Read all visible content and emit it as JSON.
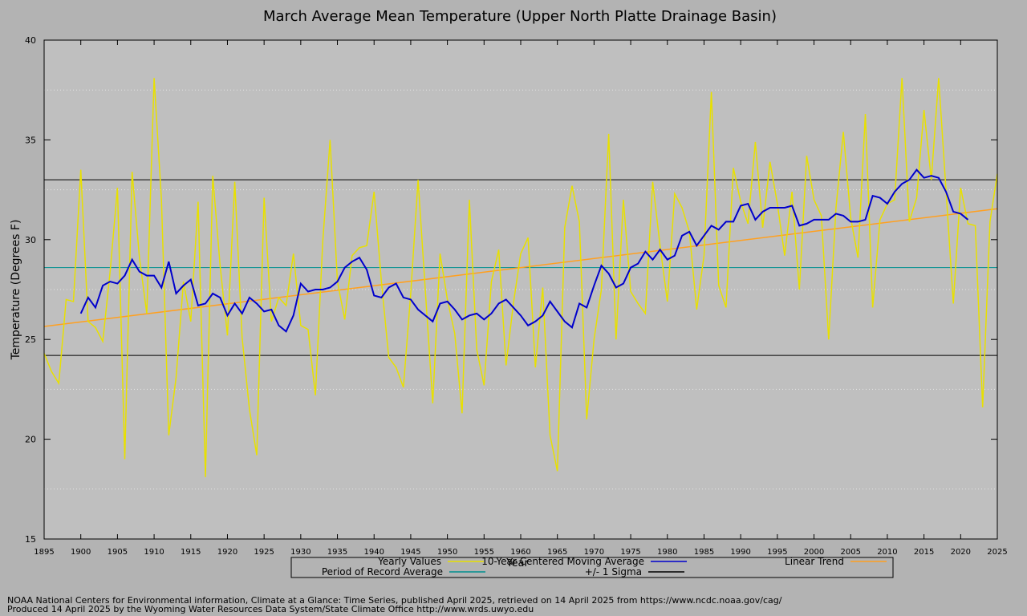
{
  "chart_data": {
    "type": "line",
    "title": "March Average Mean Temperature (Upper North Platte Drainage Basin)",
    "xlabel": "Year",
    "ylabel": "Temperature (Degrees F)",
    "x": [
      1895,
      1896,
      1897,
      1898,
      1899,
      1900,
      1901,
      1902,
      1903,
      1904,
      1905,
      1906,
      1907,
      1908,
      1909,
      1910,
      1911,
      1912,
      1913,
      1914,
      1915,
      1916,
      1917,
      1918,
      1919,
      1920,
      1921,
      1922,
      1923,
      1924,
      1925,
      1926,
      1927,
      1928,
      1929,
      1930,
      1931,
      1932,
      1933,
      1934,
      1935,
      1936,
      1937,
      1938,
      1939,
      1940,
      1941,
      1942,
      1943,
      1944,
      1945,
      1946,
      1947,
      1948,
      1949,
      1950,
      1951,
      1952,
      1953,
      1954,
      1955,
      1956,
      1957,
      1958,
      1959,
      1960,
      1961,
      1962,
      1963,
      1964,
      1965,
      1966,
      1967,
      1968,
      1969,
      1970,
      1971,
      1972,
      1973,
      1974,
      1975,
      1976,
      1977,
      1978,
      1979,
      1980,
      1981,
      1982,
      1983,
      1984,
      1985,
      1986,
      1987,
      1988,
      1989,
      1990,
      1991,
      1992,
      1993,
      1994,
      1995,
      1996,
      1997,
      1998,
      1999,
      2000,
      2001,
      2002,
      2003,
      2004,
      2005,
      2006,
      2007,
      2008,
      2009,
      2010,
      2011,
      2012,
      2013,
      2014,
      2015,
      2016,
      2017,
      2018,
      2019,
      2020,
      2021,
      2022,
      2023,
      2024,
      2025
    ],
    "series": [
      {
        "name": "Yearly Values",
        "color": "#e8e000",
        "values": [
          24.3,
          23.4,
          22.8,
          27.0,
          26.9,
          33.5,
          25.9,
          25.6,
          24.9,
          28.4,
          32.6,
          19.0,
          33.4,
          29.1,
          26.3,
          38.1,
          32.0,
          20.2,
          23.1,
          27.9,
          25.9,
          31.9,
          18.1,
          33.2,
          28.7,
          25.2,
          32.9,
          25.1,
          21.5,
          19.2,
          32.1,
          25.9,
          27.1,
          26.7,
          29.3,
          25.7,
          25.5,
          22.2,
          29.9,
          35.0,
          27.9,
          26.0,
          29.2,
          29.6,
          29.7,
          32.4,
          27.9,
          24.1,
          23.6,
          22.6,
          27.3,
          33.0,
          27.4,
          21.8,
          29.3,
          27.0,
          25.3,
          21.3,
          32.0,
          24.5,
          22.7,
          27.9,
          29.5,
          23.7,
          26.8,
          29.3,
          30.1,
          23.6,
          27.6,
          20.2,
          18.4,
          30.6,
          32.7,
          30.9,
          21.0,
          25.0,
          27.5,
          35.3,
          25.0,
          32.0,
          27.4,
          26.8,
          26.3,
          32.9,
          29.7,
          26.9,
          32.3,
          31.6,
          30.4,
          26.5,
          29.2,
          37.4,
          27.7,
          26.6,
          33.6,
          31.9,
          30.8,
          34.9,
          30.6,
          33.9,
          31.8,
          29.2,
          32.4,
          27.5,
          34.2,
          32.0,
          31.2,
          25.0,
          31.6,
          35.4,
          31.1,
          29.1,
          36.3,
          26.6,
          31.0,
          31.8,
          32.0,
          38.1,
          30.9,
          32.1,
          36.5,
          33.0,
          38.1,
          32.5,
          26.8,
          32.6,
          30.8,
          30.7,
          21.6,
          30.9,
          33.3
        ]
      },
      {
        "name": "10-Year Centered Moving Average",
        "color": "#0000cc",
        "values": [
          null,
          null,
          null,
          null,
          null,
          26.3,
          27.1,
          26.6,
          27.7,
          27.9,
          27.8,
          28.2,
          29.0,
          28.4,
          28.2,
          28.2,
          27.6,
          28.9,
          27.3,
          27.7,
          28.0,
          26.7,
          26.8,
          27.3,
          27.1,
          26.2,
          26.8,
          26.3,
          27.1,
          26.8,
          26.4,
          26.5,
          25.7,
          25.4,
          26.2,
          27.8,
          27.4,
          27.5,
          27.5,
          27.6,
          27.9,
          28.6,
          28.9,
          29.1,
          28.5,
          27.2,
          27.1,
          27.6,
          27.8,
          27.1,
          27.0,
          26.5,
          26.2,
          25.9,
          26.8,
          26.9,
          26.5,
          26.0,
          26.2,
          26.3,
          26.0,
          26.3,
          26.8,
          27.0,
          26.6,
          26.2,
          25.7,
          25.9,
          26.2,
          26.9,
          26.4,
          25.9,
          25.6,
          26.8,
          26.6,
          27.7,
          28.7,
          28.3,
          27.6,
          27.8,
          28.6,
          28.8,
          29.4,
          29.0,
          29.5,
          29.0,
          29.2,
          30.2,
          30.4,
          29.7,
          30.2,
          30.7,
          30.5,
          30.9,
          30.9,
          31.7,
          31.8,
          31.0,
          31.4,
          31.6,
          31.6,
          31.6,
          31.7,
          30.7,
          30.8,
          31.0,
          31.0,
          31.0,
          31.3,
          31.2,
          30.9,
          30.9,
          31.0,
          32.2,
          32.1,
          31.8,
          32.4,
          32.8,
          33.0,
          33.5,
          33.1,
          33.2,
          33.1,
          32.4,
          31.4,
          31.3,
          31.0,
          null,
          null,
          null,
          null
        ]
      },
      {
        "name": "Linear Trend",
        "color": "#ffa020",
        "x": [
          1895,
          2025
        ],
        "values": [
          25.65,
          31.55
        ]
      },
      {
        "name": "Period of Record Average",
        "color": "#009090",
        "hline": [
          28.6
        ]
      },
      {
        "name": "+/- 1 Sigma",
        "color": "#000000",
        "hline": [
          33.0,
          24.2
        ]
      }
    ],
    "xlim": [
      1895,
      2025
    ],
    "ylim": [
      15,
      40
    ],
    "xticks": [
      1895,
      1900,
      1905,
      1910,
      1915,
      1920,
      1925,
      1930,
      1935,
      1940,
      1945,
      1950,
      1955,
      1960,
      1965,
      1970,
      1975,
      1980,
      1985,
      1990,
      1995,
      2000,
      2005,
      2010,
      2015,
      2020,
      2025
    ],
    "yticks": [
      15,
      20,
      25,
      30,
      35,
      40
    ],
    "minor_grid": [
      17.5,
      22.5,
      27.5,
      32.5,
      37.5
    ],
    "notes": [
      "NOAA National Centers for Environmental information, Climate at a Glance: Time Series, published April 2025, retrieved on 14 April 2025 from https://www.ncdc.noaa.gov/cag/",
      "Produced 14 April 2025 by the Wyoming Water Resources Data System/State Climate Office http://www.wrds.uwyo.edu"
    ]
  }
}
